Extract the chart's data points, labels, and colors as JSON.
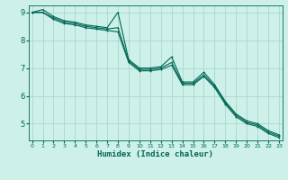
{
  "xlabel": "Humidex (Indice chaleur)",
  "bg_color": "#cdf0e8",
  "grid_color": "#a8d8cc",
  "line_color": "#006655",
  "marker_color": "#006655",
  "x": [
    0,
    1,
    2,
    3,
    4,
    5,
    6,
    7,
    8,
    9,
    10,
    11,
    12,
    13,
    14,
    15,
    16,
    17,
    18,
    19,
    20,
    21,
    22,
    23
  ],
  "y_line1": [
    9.0,
    9.1,
    8.85,
    8.7,
    8.65,
    8.55,
    8.5,
    8.45,
    9.0,
    7.3,
    7.0,
    7.0,
    7.05,
    7.4,
    6.5,
    6.5,
    6.85,
    6.4,
    5.8,
    5.35,
    5.1,
    5.0,
    4.75,
    4.6
  ],
  "y_line2": [
    9.0,
    9.0,
    8.8,
    8.65,
    8.6,
    8.5,
    8.45,
    8.4,
    8.45,
    7.25,
    6.95,
    6.95,
    7.0,
    7.2,
    6.45,
    6.45,
    6.75,
    6.35,
    5.75,
    5.3,
    5.05,
    4.95,
    4.7,
    4.55
  ],
  "y_line3": [
    9.0,
    9.0,
    8.75,
    8.6,
    8.55,
    8.45,
    8.4,
    8.35,
    8.3,
    7.2,
    6.9,
    6.9,
    6.95,
    7.1,
    6.4,
    6.4,
    6.7,
    6.3,
    5.7,
    5.25,
    5.0,
    4.9,
    4.65,
    4.5
  ],
  "ylim": [
    4.4,
    9.25
  ],
  "xlim": [
    -0.3,
    23.3
  ],
  "yticks": [
    5,
    6,
    7,
    8,
    9
  ],
  "xticks": [
    0,
    1,
    2,
    3,
    4,
    5,
    6,
    7,
    8,
    9,
    10,
    11,
    12,
    13,
    14,
    15,
    16,
    17,
    18,
    19,
    20,
    21,
    22,
    23
  ]
}
